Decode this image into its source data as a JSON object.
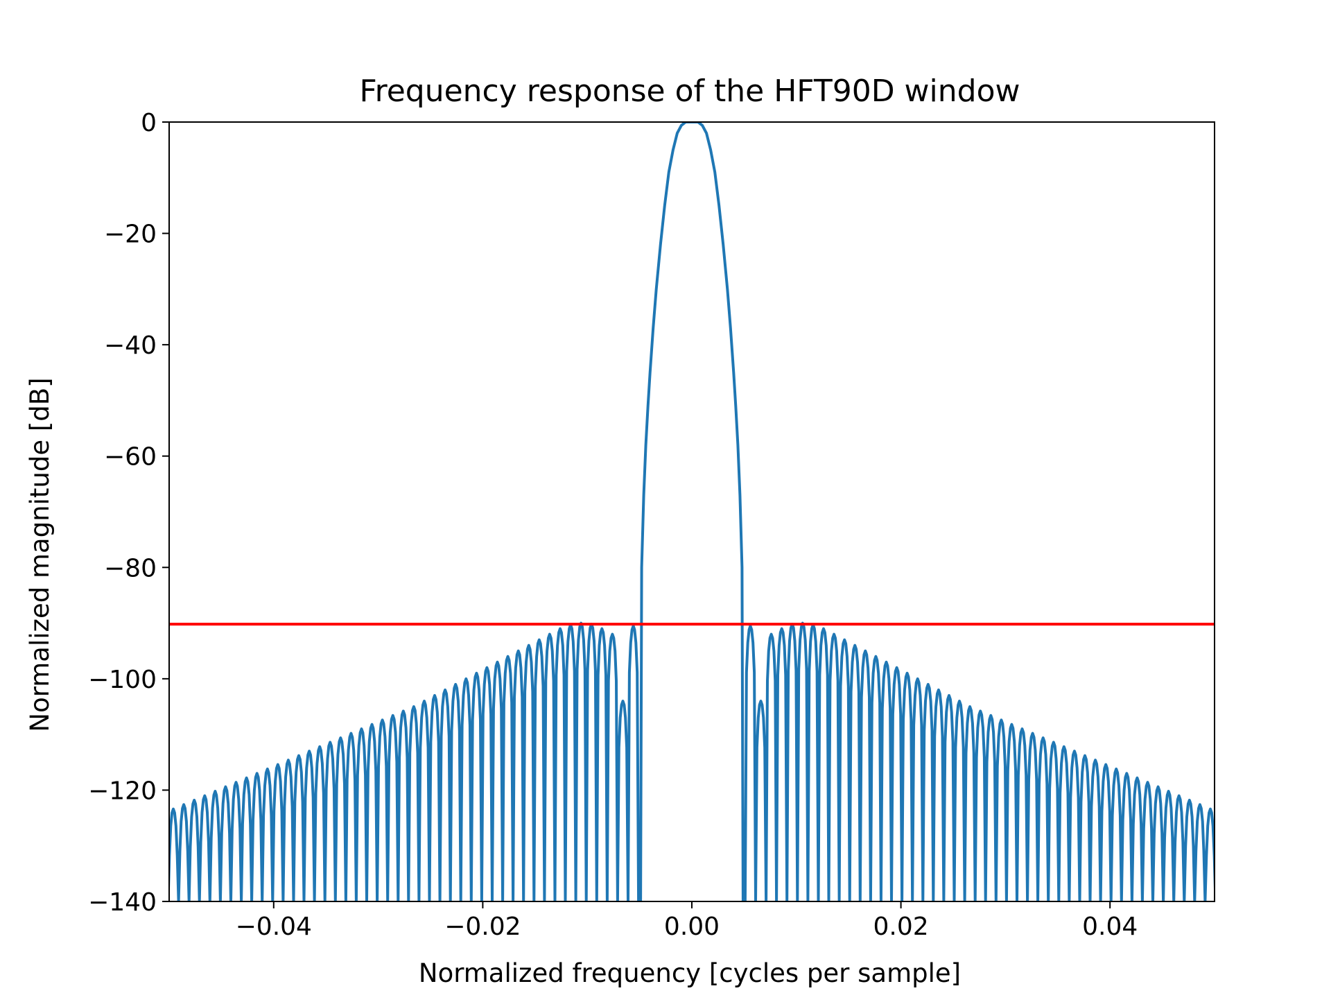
{
  "chart_data": {
    "type": "line",
    "title": "Frequency response of the HFT90D window",
    "xlabel": "Normalized frequency [cycles per sample]",
    "ylabel": "Normalized magnitude [dB]",
    "xlim": [
      -0.05,
      0.05
    ],
    "ylim": [
      -140,
      0
    ],
    "x_ticks": [
      -0.04,
      -0.02,
      0.0,
      0.02,
      0.04
    ],
    "x_tick_labels": [
      "−0.04",
      "−0.02",
      "0.00",
      "0.02",
      "0.04"
    ],
    "y_ticks": [
      0,
      -20,
      -40,
      -60,
      -80,
      -100,
      -120,
      -140
    ],
    "y_tick_labels": [
      "0",
      "−20",
      "−40",
      "−60",
      "−80",
      "−100",
      "−120",
      "−140"
    ],
    "grid": false,
    "legend": "none",
    "series": [
      {
        "color": "#1f77b4",
        "main_lobe": {
          "x": [
            -0.0049,
            -0.0048,
            -0.0046,
            -0.0044,
            -0.0042,
            -0.004,
            -0.0037,
            -0.0034,
            -0.003,
            -0.0026,
            -0.0022,
            -0.0018,
            -0.0014,
            -0.001,
            -0.0006,
            0.0,
            0.0006,
            0.001,
            0.0014,
            0.0018,
            0.0022,
            0.0026,
            0.003,
            0.0034,
            0.0037,
            0.004,
            0.0042,
            0.0044,
            0.0046,
            0.0048,
            0.0049
          ],
          "y": [
            -140,
            -80,
            -67,
            -58,
            -51,
            -45,
            -37,
            -30,
            -22,
            -15,
            -9,
            -5,
            -2,
            -0.6,
            0,
            0,
            0,
            -0.6,
            -2,
            -5,
            -9,
            -15,
            -22,
            -30,
            -37,
            -45,
            -51,
            -58,
            -67,
            -80,
            -140
          ]
        },
        "sidelobe_start": 0.0051,
        "sidelobe_spacing": 0.001,
        "sidelobe_peaks_db": [
          -90.5,
          -104,
          -92,
          -91,
          -90.2,
          -90.0,
          -90.3,
          -91,
          -92,
          -93,
          -94,
          -95,
          -96,
          -97,
          -98,
          -99,
          -100,
          -101,
          -102,
          -103,
          -104,
          -105,
          -105.8,
          -106.6,
          -107.4,
          -108.2,
          -109,
          -109.8,
          -110.6,
          -111.4,
          -112.2,
          -113,
          -113.8,
          -114.6,
          -115.4,
          -116.2,
          -117,
          -117.8,
          -118.6,
          -119.4,
          -120.2,
          -121,
          -121.8,
          -122.6,
          -123.4,
          -124.2,
          -125,
          -126
        ]
      },
      {
        "name": "",
        "color": "#ff0000",
        "x": [
          -0.05,
          0.05
        ],
        "y": [
          -90.2,
          -90.2
        ]
      }
    ]
  }
}
